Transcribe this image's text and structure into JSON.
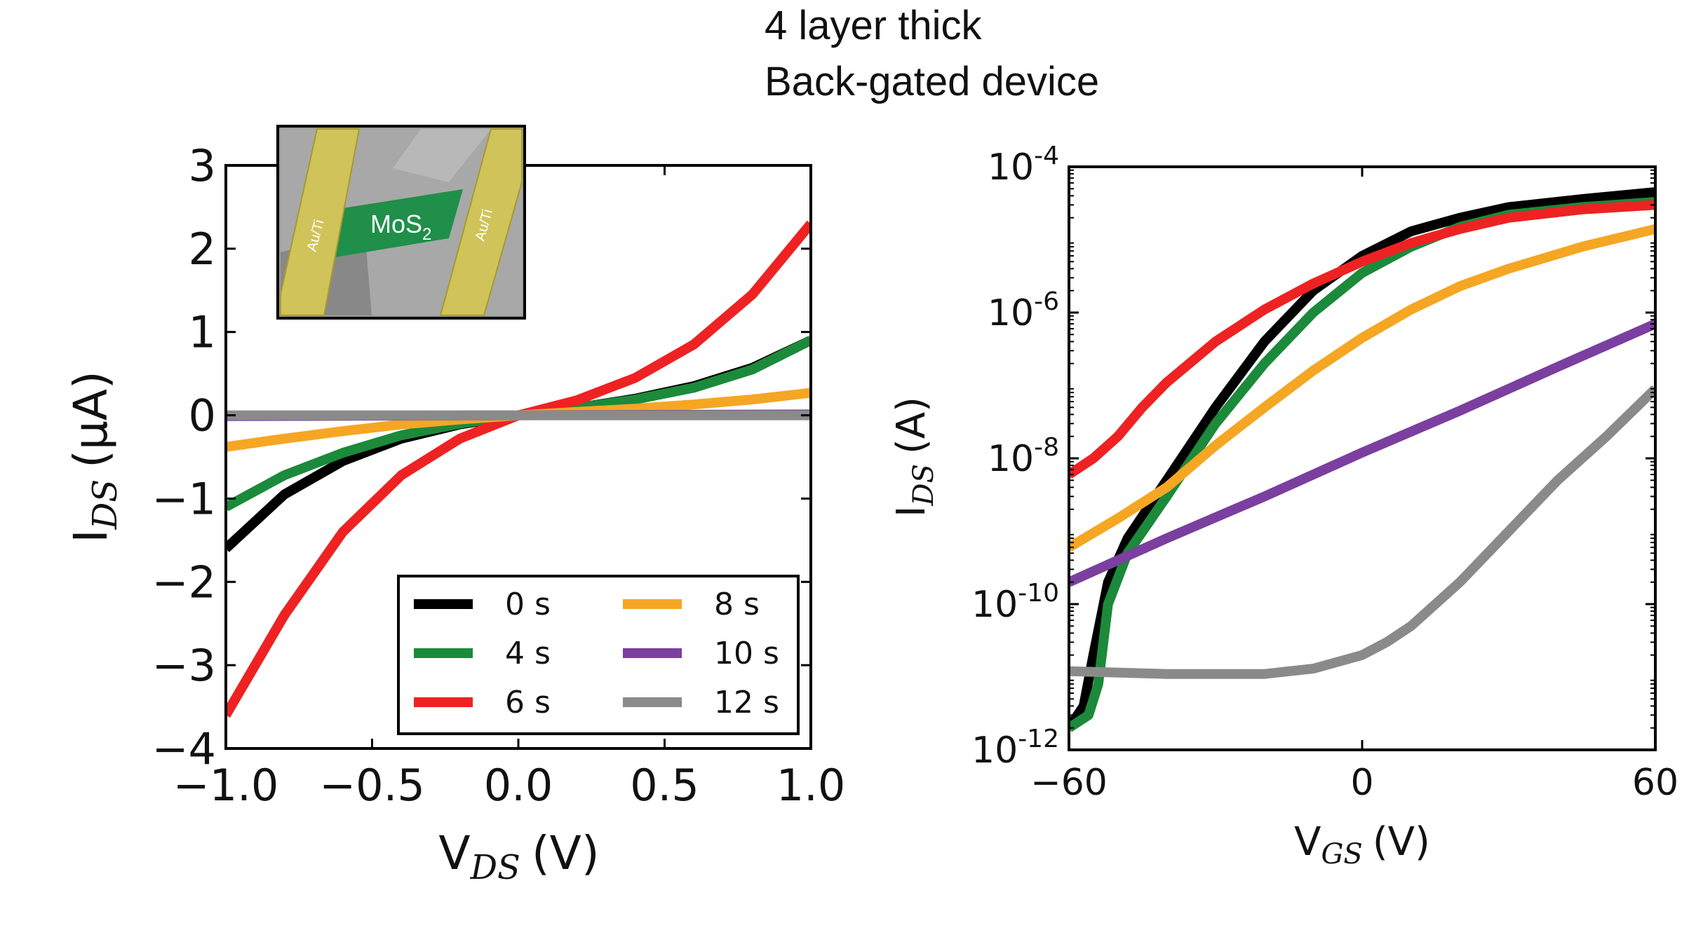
{
  "title": {
    "line1": "4 layer thick",
    "line2": "Back-gated device"
  },
  "colors": {
    "0 s": "#000000",
    "4 s": "#1b8a3a",
    "6 s": "#ee2222",
    "8 s": "#f5a623",
    "10 s": "#7b3fa0",
    "12 s": "#8a8a8a"
  },
  "chart_data": [
    {
      "type": "line",
      "xlabel": {
        "main": "V",
        "sub": "DS",
        "unit": "(V)"
      },
      "ylabel": {
        "main": "I",
        "sub": "DS",
        "unit": "(μA)"
      },
      "xlim": [
        -1.0,
        1.0
      ],
      "ylim": [
        -4,
        3
      ],
      "x_ticks": [
        -1.0,
        -0.5,
        0.0,
        0.5,
        1.0
      ],
      "x_tick_labels": [
        "−1.0",
        "−0.5",
        "0.0",
        "0.5",
        "1.0"
      ],
      "y_ticks": [
        3,
        2,
        1,
        0,
        -1,
        -2,
        -3,
        -4
      ],
      "y_tick_labels": [
        "3",
        "2",
        "1",
        "0",
        "−1",
        "−2",
        "−3",
        "−4"
      ],
      "legend": {
        "placement": "lower-right",
        "entries": [
          "0 s",
          "4 s",
          "6 s",
          "8 s",
          "10 s",
          "12 s"
        ]
      },
      "inset": {
        "material": "MoS",
        "material_sub": "2",
        "contact_left": "Au/Ti",
        "contact_right": "Au/Ti"
      },
      "series": [
        {
          "name": "0 s",
          "x": [
            -1.0,
            -0.8,
            -0.6,
            -0.4,
            -0.2,
            0.0,
            0.2,
            0.4,
            0.6,
            0.8,
            1.0
          ],
          "y": [
            -1.6,
            -0.95,
            -0.55,
            -0.28,
            -0.11,
            0.0,
            0.09,
            0.2,
            0.35,
            0.57,
            0.9
          ]
        },
        {
          "name": "4 s",
          "x": [
            -1.0,
            -0.8,
            -0.6,
            -0.4,
            -0.2,
            0.0,
            0.2,
            0.4,
            0.6,
            0.8,
            1.0
          ],
          "y": [
            -1.1,
            -0.72,
            -0.45,
            -0.24,
            -0.1,
            0.0,
            0.09,
            0.19,
            0.33,
            0.55,
            0.9
          ]
        },
        {
          "name": "6 s",
          "x": [
            -1.0,
            -0.8,
            -0.6,
            -0.4,
            -0.2,
            0.0,
            0.2,
            0.4,
            0.6,
            0.8,
            1.0
          ],
          "y": [
            -3.6,
            -2.4,
            -1.4,
            -0.72,
            -0.28,
            0.0,
            0.18,
            0.45,
            0.85,
            1.45,
            2.3
          ]
        },
        {
          "name": "8 s",
          "x": [
            -1.0,
            -0.8,
            -0.6,
            -0.4,
            -0.2,
            0.0,
            0.2,
            0.4,
            0.6,
            0.8,
            1.0
          ],
          "y": [
            -0.38,
            -0.28,
            -0.19,
            -0.11,
            -0.05,
            0.0,
            0.04,
            0.08,
            0.13,
            0.19,
            0.27
          ]
        },
        {
          "name": "10 s",
          "x": [
            -1.0,
            0.0,
            1.0
          ],
          "y": [
            -0.01,
            0.0,
            0.01
          ]
        },
        {
          "name": "12 s",
          "x": [
            -1.0,
            0.0,
            1.0
          ],
          "y": [
            0.0,
            0.0,
            0.0
          ]
        }
      ]
    },
    {
      "type": "line",
      "xlabel": {
        "main": "V",
        "sub": "GS",
        "unit": "(V)"
      },
      "ylabel": {
        "main": "I",
        "sub": "DS",
        "unit": "(A)"
      },
      "xlim": [
        -60,
        60
      ],
      "ylim": [
        1e-12,
        0.0001
      ],
      "yscale": "log",
      "x_ticks": [
        -60,
        0,
        60
      ],
      "x_tick_labels": [
        "−60",
        "0",
        "60"
      ],
      "y_ticks": [
        -4,
        -6,
        -8,
        -10,
        -12
      ],
      "y_tick_labels": [
        {
          "base": "10",
          "exp": "-4"
        },
        {
          "base": "10",
          "exp": "-6"
        },
        {
          "base": "10",
          "exp": "-8"
        },
        {
          "base": "10",
          "exp": "-10"
        },
        {
          "base": "10",
          "exp": "-12"
        }
      ],
      "series": [
        {
          "name": "0 s",
          "x": [
            -60,
            -57,
            -55,
            -52,
            -48,
            -40,
            -30,
            -20,
            -10,
            0,
            10,
            20,
            30,
            45,
            60
          ],
          "y": [
            2e-12,
            4e-12,
            2e-11,
            2e-10,
            8e-10,
            5e-09,
            5e-08,
            4e-07,
            2e-06,
            6e-06,
            1.3e-05,
            2e-05,
            2.8e-05,
            3.6e-05,
            4.5e-05
          ]
        },
        {
          "name": "4 s",
          "x": [
            -60,
            -56,
            -54,
            -52,
            -48,
            -40,
            -30,
            -20,
            -10,
            0,
            10,
            20,
            30,
            45,
            60
          ],
          "y": [
            2e-12,
            3e-12,
            8e-12,
            1e-10,
            5e-10,
            3e-09,
            3e-08,
            2e-07,
            1e-06,
            3.5e-06,
            8e-06,
            1.5e-05,
            2.2e-05,
            2.8e-05,
            3.3e-05
          ]
        },
        {
          "name": "6 s",
          "x": [
            -60,
            -55,
            -50,
            -45,
            -40,
            -30,
            -20,
            -10,
            0,
            10,
            20,
            30,
            45,
            60
          ],
          "y": [
            6e-09,
            1e-08,
            2e-08,
            5e-08,
            1.1e-07,
            4e-07,
            1.1e-06,
            2.5e-06,
            5e-06,
            9e-06,
            1.4e-05,
            2e-05,
            2.6e-05,
            3e-05
          ]
        },
        {
          "name": "8 s",
          "x": [
            -60,
            -50,
            -40,
            -30,
            -20,
            -10,
            0,
            10,
            20,
            30,
            45,
            60
          ],
          "y": [
            6e-10,
            1.5e-09,
            4e-09,
            1.5e-08,
            5e-08,
            1.6e-07,
            4.5e-07,
            1.1e-06,
            2.3e-06,
            4e-06,
            8e-06,
            1.4e-05
          ]
        },
        {
          "name": "10 s",
          "x": [
            -60,
            -40,
            -20,
            0,
            20,
            40,
            60
          ],
          "y": [
            2e-10,
            8e-10,
            3e-09,
            1.2e-08,
            4.5e-08,
            1.8e-07,
            7e-07
          ]
        },
        {
          "name": "12 s",
          "x": [
            -60,
            -40,
            -30,
            -20,
            -10,
            0,
            5,
            10,
            20,
            30,
            40,
            50,
            60
          ],
          "y": [
            1.2e-11,
            1.1e-11,
            1.1e-11,
            1.1e-11,
            1.3e-11,
            2e-11,
            3e-11,
            5e-11,
            2e-10,
            1e-09,
            5e-09,
            2e-08,
            9e-08
          ]
        }
      ]
    }
  ]
}
